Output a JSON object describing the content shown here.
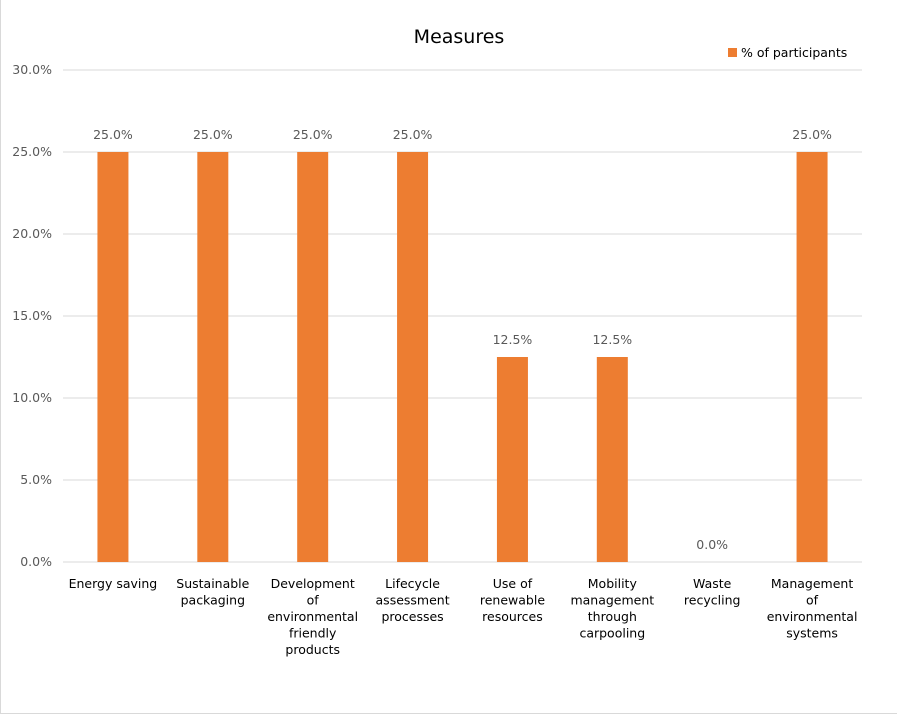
{
  "chart_data": {
    "type": "bar",
    "title": "Measures",
    "categories": [
      [
        "Energy saving"
      ],
      [
        "Sustainable",
        "packaging"
      ],
      [
        "Development",
        "of",
        "environmental",
        "friendly",
        "products"
      ],
      [
        "Lifecycle",
        "assessment",
        "processes"
      ],
      [
        "Use of",
        "renewable",
        "resources"
      ],
      [
        "Mobility",
        "management",
        "through",
        "carpooling"
      ],
      [
        "Waste",
        "recycling"
      ],
      [
        "Management",
        "of",
        "environmental",
        "systems"
      ]
    ],
    "series": [
      {
        "name": "% of participants",
        "values": [
          25.0,
          25.0,
          25.0,
          25.0,
          12.5,
          12.5,
          0.0,
          25.0
        ]
      }
    ],
    "data_labels": [
      "25.0%",
      "25.0%",
      "25.0%",
      "25.0%",
      "12.5%",
      "12.5%",
      "0.0%",
      "25.0%"
    ],
    "ylim": [
      0,
      30
    ],
    "yticks": [
      "0.0%",
      "5.0%",
      "10.0%",
      "15.0%",
      "20.0%",
      "25.0%",
      "30.0%"
    ],
    "grid": true,
    "legend_position": "top-right",
    "bar_color": "#ed7d31",
    "grid_color": "#d9d9d9",
    "text_color": "#595959"
  }
}
